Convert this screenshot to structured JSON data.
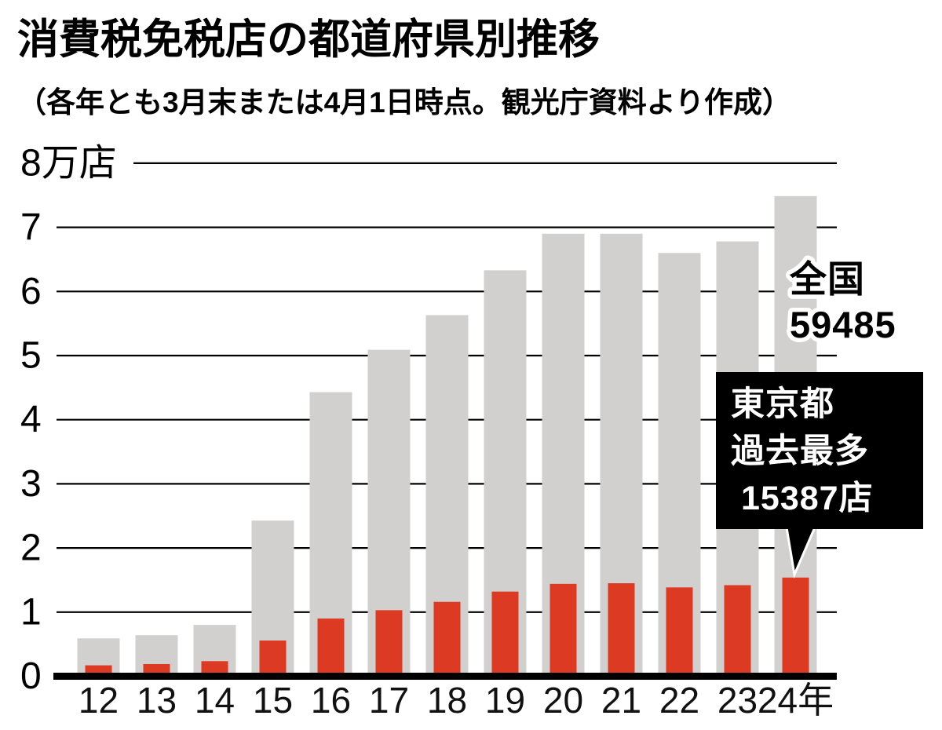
{
  "title": "消費税免税店の都道府県別推移",
  "subtitle": "（各年とも3月末または4月1日時点。観光庁資料より作成）",
  "colors": {
    "tokyo_bar": "#dc3a23",
    "national_bar": "#d1d0ce",
    "grid_line": "#000000",
    "axis_line": "#000000",
    "callout_bg": "#000000",
    "callout_text": "#ffffff"
  },
  "y_axis": {
    "ticks": [
      "8万店",
      "7",
      "6",
      "5",
      "4",
      "3",
      "2",
      "1",
      "0"
    ],
    "tick_values": [
      8,
      7,
      6,
      5,
      4,
      3,
      2,
      1,
      0
    ],
    "unit": "万店",
    "max": 8,
    "min": 0
  },
  "annotations": {
    "national": {
      "line1": "全国",
      "line2": "59485"
    },
    "callout": {
      "line1": "東京都",
      "line2": "過去最多",
      "line3": "15387店"
    }
  },
  "chart_data": {
    "type": "bar",
    "stacked": true,
    "title": "消費税免税店の都道府県別推移",
    "subtitle": "（各年とも3月末または4月1日時点。観光庁資料より作成）",
    "categories": [
      "12",
      "13",
      "14",
      "15",
      "16",
      "17",
      "18",
      "19",
      "20",
      "21",
      "22",
      "23",
      "24年"
    ],
    "series": [
      {
        "name": "東京都",
        "color": "#dc3a23",
        "unit": "店",
        "values": [
          1700,
          1900,
          2350,
          5570,
          9000,
          10300,
          11600,
          13200,
          14400,
          14500,
          13850,
          14200,
          15387
        ]
      },
      {
        "name": "全国",
        "color": "#d1d0ce",
        "unit": "店",
        "values": [
          4200,
          4500,
          5650,
          18700,
          35300,
          40600,
          44700,
          50100,
          54600,
          54500,
          52150,
          53600,
          59485
        ]
      }
    ],
    "labeled_values": {
      "tokyo_2024": 15387,
      "national_2024": 59485
    },
    "stacking_note": "gray national bar is drawn stacked on top of the red Tokyo bar (gray bar top = Tokyo + National); red bar is narrower and overlaps the gray column at the bottom",
    "ylabel": "万店",
    "ylim": [
      0,
      8
    ],
    "grid": true,
    "legend_position": "none"
  }
}
